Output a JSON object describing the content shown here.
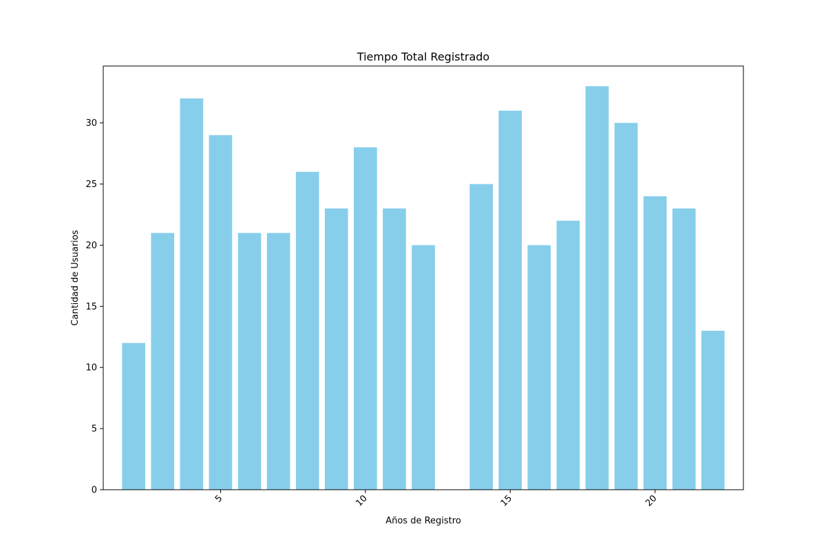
{
  "chart_data": {
    "type": "bar",
    "title": "Tiempo Total Registrado",
    "xlabel": "Años de Registro",
    "ylabel": "Cantidad de Usuarios",
    "x": [
      2,
      3,
      4,
      5,
      6,
      7,
      8,
      9,
      10,
      11,
      12,
      14,
      15,
      16,
      17,
      18,
      19,
      20,
      21,
      22
    ],
    "values": [
      12,
      21,
      32,
      29,
      21,
      21,
      26,
      23,
      28,
      23,
      20,
      25,
      31,
      20,
      22,
      33,
      30,
      24,
      23,
      13
    ],
    "xlim": [
      0.95,
      23.05
    ],
    "ylim": [
      0,
      34.65
    ],
    "xticks": [
      5,
      10,
      15,
      20
    ],
    "yticks": [
      0,
      5,
      10,
      15,
      20,
      25,
      30
    ],
    "grid": false,
    "bar_color": "#87ceeb"
  }
}
